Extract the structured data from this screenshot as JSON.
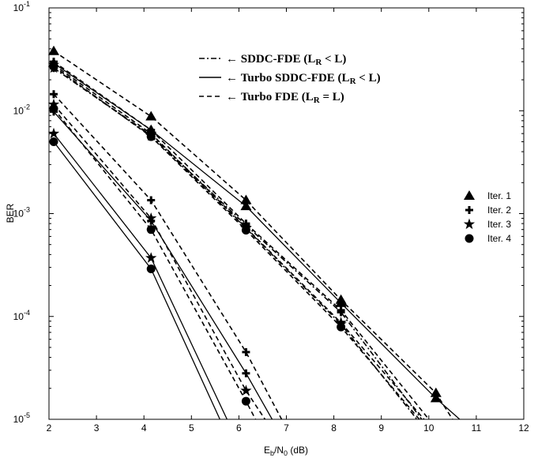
{
  "chart_data": {
    "type": "line",
    "x_scale": "linear",
    "y_scale": "log",
    "xlim": [
      2,
      12
    ],
    "ylim": [
      1e-05,
      0.1
    ],
    "xticks": [
      "2",
      "3",
      "4",
      "5",
      "6",
      "7",
      "8",
      "9",
      "10",
      "11",
      "12"
    ],
    "yticks": [
      {
        "base": "10",
        "exp": "-5"
      },
      {
        "base": "10",
        "exp": "-4"
      },
      {
        "base": "10",
        "exp": "-3"
      },
      {
        "base": "10",
        "exp": "-2"
      },
      {
        "base": "10",
        "exp": "-1"
      }
    ],
    "ylabel": "BER",
    "xlabel_parts": {
      "main": "E",
      "sub1": "b",
      "mid": "/N",
      "sub2": "0",
      "tail": " (dB)"
    },
    "grid": false,
    "line_legend": [
      {
        "style": "dashdot",
        "arrow": "←",
        "text": "SDDC-FDE (L",
        "sub": "R",
        "rel": " < L)"
      },
      {
        "style": "solid",
        "arrow": "←",
        "text": "Turbo SDDC-FDE (L",
        "sub": "R",
        "rel": " < L)"
      },
      {
        "style": "dashed",
        "arrow": "←",
        "text": "Turbo FDE (L",
        "sub": "R",
        "rel": " = L)"
      }
    ],
    "marker_legend": [
      {
        "marker": "triangle",
        "label": "Iter. 1"
      },
      {
        "marker": "plus",
        "label": "Iter. 2"
      },
      {
        "marker": "star",
        "label": "Iter. 3"
      },
      {
        "marker": "circle",
        "label": "Iter. 4"
      }
    ],
    "series": [
      {
        "style": "dashed",
        "marker": "triangle",
        "points": [
          [
            2.1,
            0.038
          ],
          [
            4.15,
            0.0088
          ],
          [
            6.15,
            0.00135
          ],
          [
            8.15,
            0.000145
          ],
          [
            10.15,
            1.8e-05
          ],
          [
            10.5,
            1e-05
          ]
        ]
      },
      {
        "style": "dashed",
        "marker": "plus",
        "points": [
          [
            2.1,
            0.03
          ],
          [
            4.15,
            0.0065
          ],
          [
            6.15,
            0.0008
          ],
          [
            8.15,
            0.000115
          ],
          [
            10.0,
            1e-05
          ]
        ]
      },
      {
        "style": "dashed",
        "marker": "star",
        "points": [
          [
            2.1,
            0.028
          ],
          [
            4.15,
            0.006
          ],
          [
            6.15,
            0.00073
          ],
          [
            8.15,
            8.7e-05
          ],
          [
            9.9,
            1e-05
          ]
        ]
      },
      {
        "style": "dashed",
        "marker": "circle",
        "points": [
          [
            2.1,
            0.027
          ],
          [
            4.15,
            0.0056
          ],
          [
            6.15,
            0.00069
          ],
          [
            8.15,
            7.9e-05
          ],
          [
            9.8,
            1e-05
          ]
        ]
      },
      {
        "style": "solid",
        "marker": "triangle",
        "points": [
          [
            2.1,
            0.029
          ],
          [
            4.15,
            0.0065
          ],
          [
            6.15,
            0.00118
          ],
          [
            8.15,
            0.000135
          ],
          [
            10.15,
            1.6e-05
          ],
          [
            10.65,
            1e-05
          ]
        ]
      },
      {
        "style": "dashdot",
        "marker": "plus",
        "points": [
          [
            2.1,
            0.026
          ],
          [
            4.15,
            0.0058
          ],
          [
            6.15,
            0.00077
          ],
          [
            8.15,
            0.00011
          ],
          [
            9.85,
            1e-05
          ]
        ]
      },
      {
        "style": "dashdot",
        "marker": "star",
        "points": [
          [
            2.1,
            0.026
          ],
          [
            4.15,
            0.0057
          ],
          [
            6.15,
            0.00072
          ],
          [
            8.15,
            8.4e-05
          ],
          [
            9.75,
            1e-05
          ]
        ]
      },
      {
        "style": "dashed",
        "marker": "plus",
        "points": [
          [
            2.1,
            0.0145
          ],
          [
            4.15,
            0.00135
          ],
          [
            6.15,
            4.5e-05
          ],
          [
            6.9,
            1e-05
          ]
        ]
      },
      {
        "style": "dashed",
        "marker": "star",
        "points": [
          [
            2.1,
            0.0115
          ],
          [
            4.15,
            0.0009
          ],
          [
            6.15,
            1.9e-05
          ],
          [
            6.55,
            1e-05
          ]
        ]
      },
      {
        "style": "dashed",
        "marker": "circle",
        "points": [
          [
            2.1,
            0.0105
          ],
          [
            4.15,
            0.0007
          ],
          [
            6.15,
            1.5e-05
          ],
          [
            6.35,
            1e-05
          ]
        ]
      },
      {
        "style": "solid",
        "marker": "plus",
        "points": [
          [
            2.1,
            0.0098
          ],
          [
            4.15,
            0.00085
          ],
          [
            6.15,
            2.8e-05
          ],
          [
            6.7,
            1e-05
          ]
        ]
      },
      {
        "style": "solid",
        "marker": "star",
        "points": [
          [
            2.1,
            0.006
          ],
          [
            4.15,
            0.00037
          ],
          [
            5.75,
            1e-05
          ]
        ]
      },
      {
        "style": "solid",
        "marker": "circle",
        "points": [
          [
            2.1,
            0.005
          ],
          [
            4.15,
            0.00029
          ],
          [
            5.6,
            1e-05
          ]
        ]
      }
    ]
  }
}
